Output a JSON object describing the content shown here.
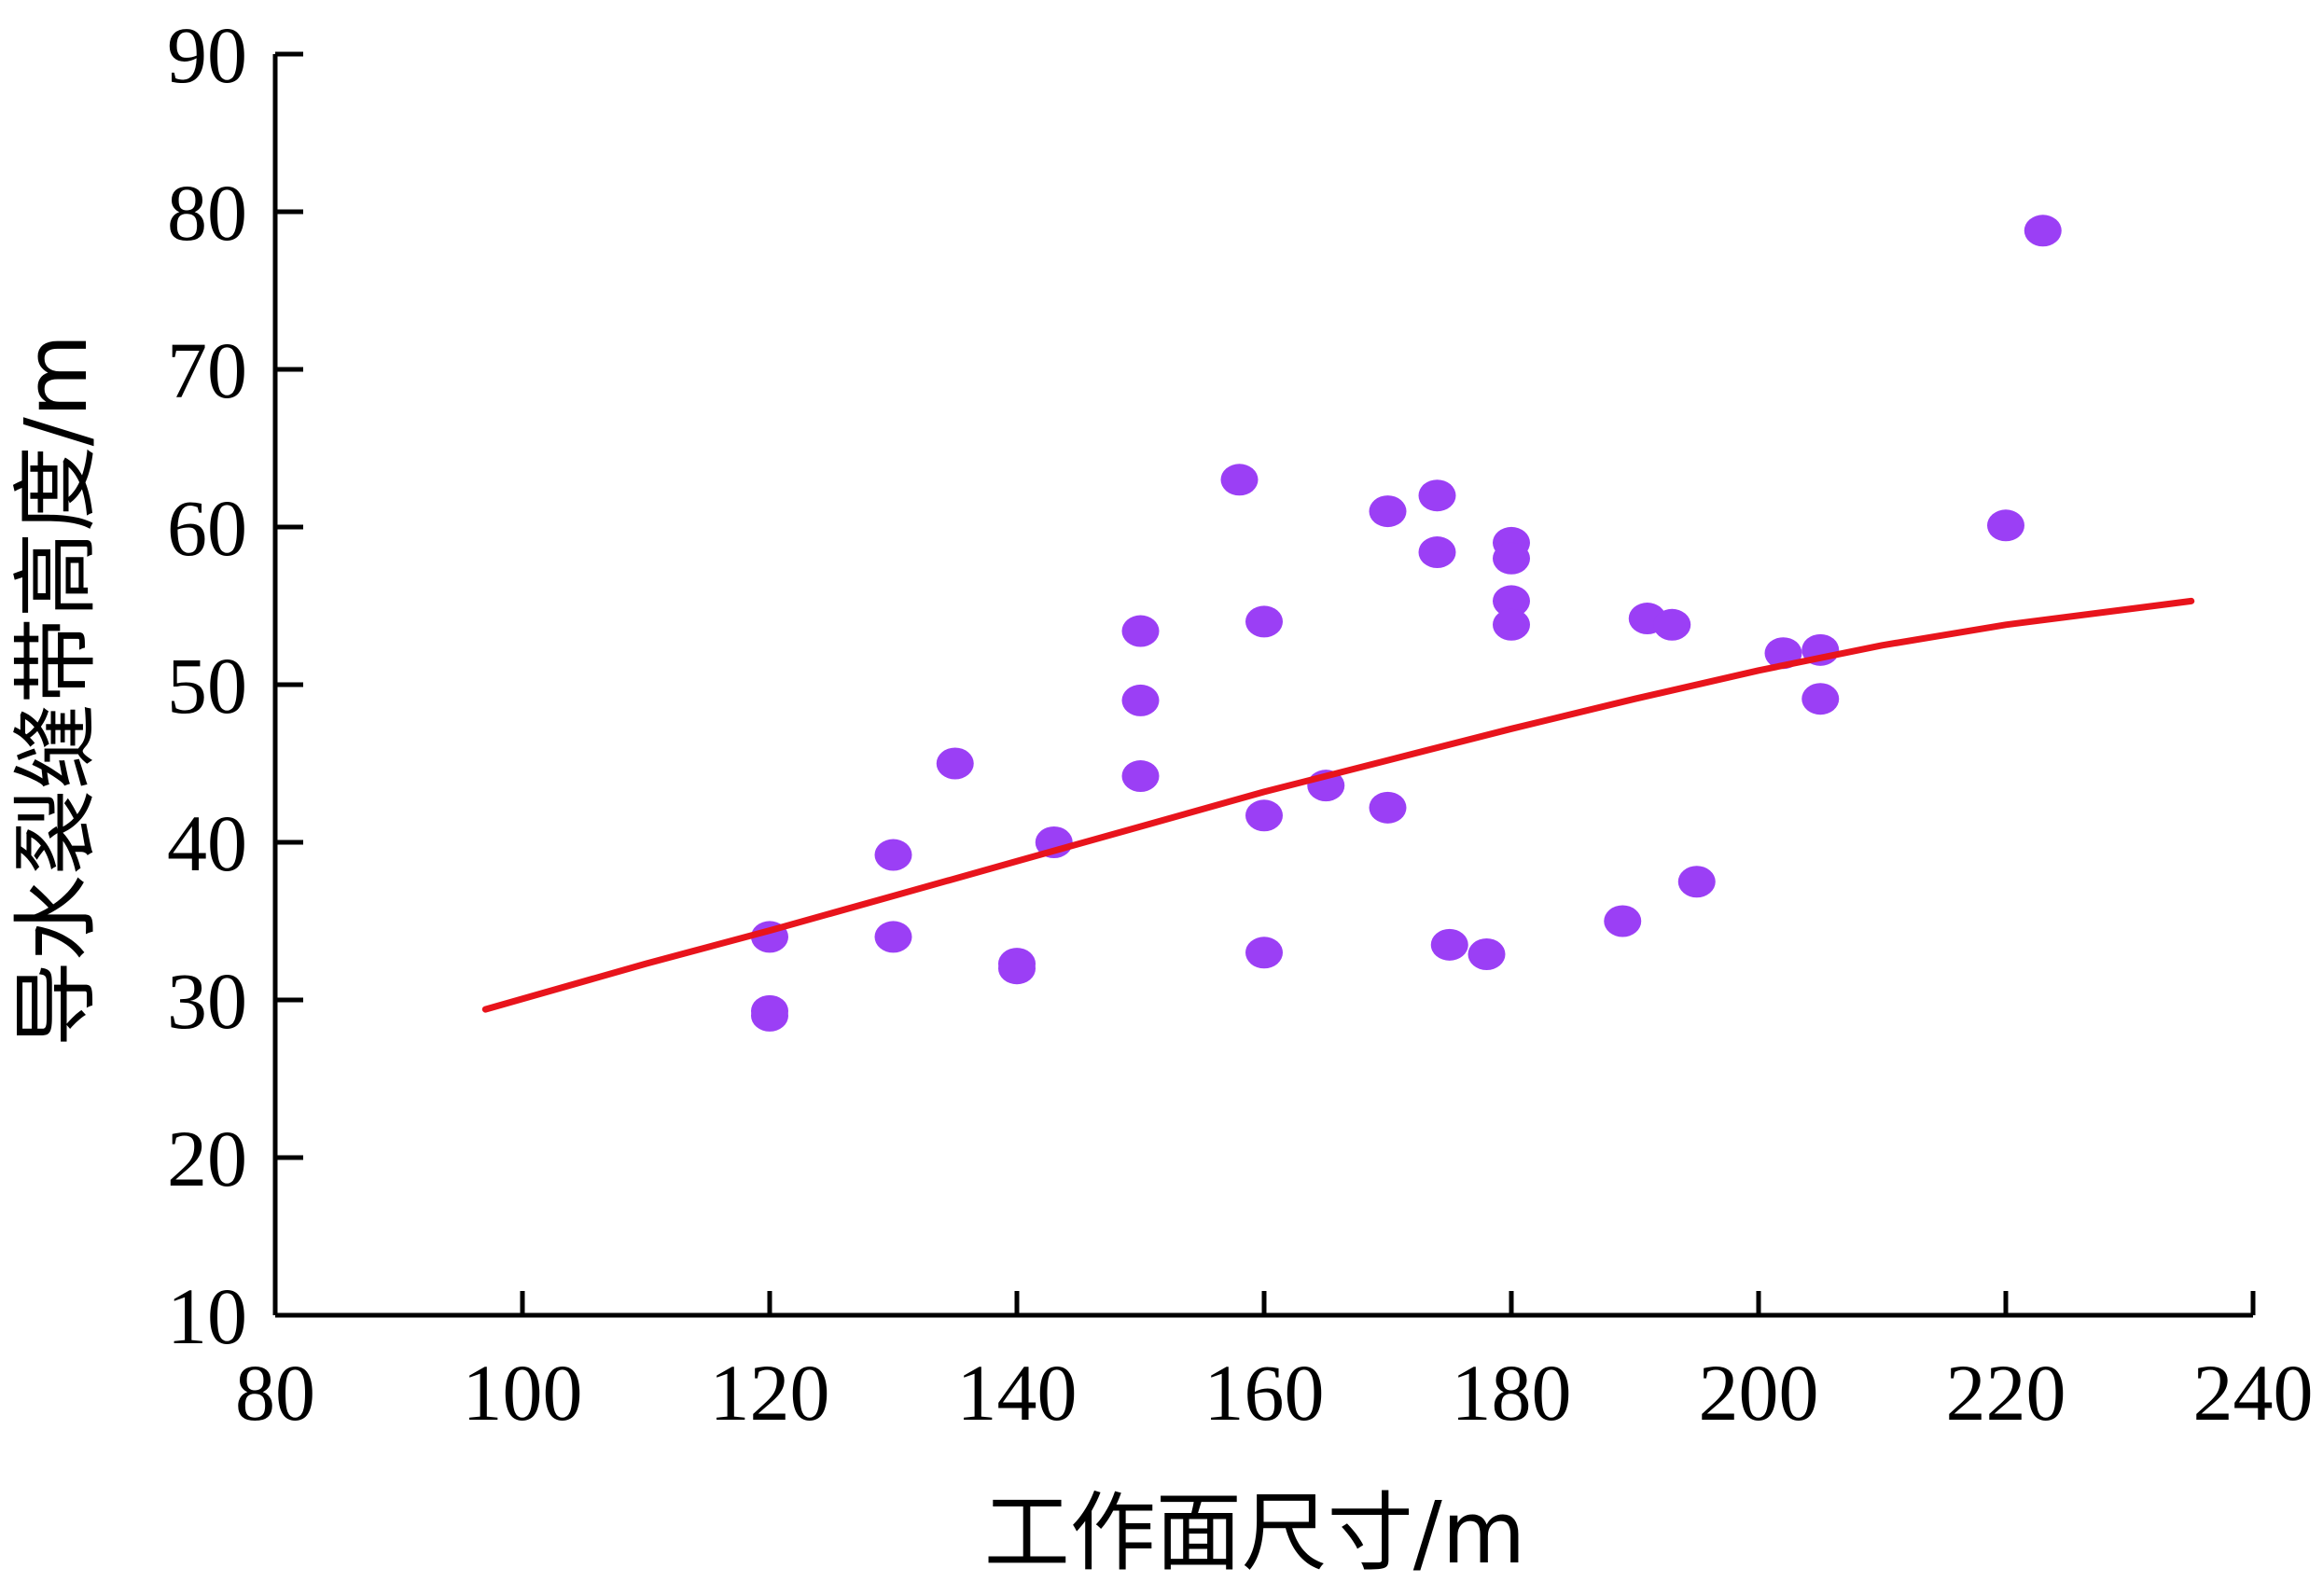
{
  "chart_data": {
    "type": "scatter",
    "xlabel": "工作面尺寸/m",
    "ylabel": "导水裂缝带高度/m",
    "xlim": [
      80,
      240
    ],
    "ylim": [
      10,
      90
    ],
    "x_ticks": [
      80,
      100,
      120,
      140,
      160,
      180,
      200,
      220,
      240
    ],
    "y_ticks": [
      10,
      20,
      30,
      40,
      50,
      60,
      70,
      80,
      90
    ],
    "grid": false,
    "colors": {
      "points": "#9b3ff5",
      "trend": "#e8141c",
      "axis": "#000000"
    },
    "points": [
      [
        120,
        34
      ],
      [
        120,
        29.3
      ],
      [
        120,
        29
      ],
      [
        130,
        39.2
      ],
      [
        130,
        34
      ],
      [
        135,
        45
      ],
      [
        140,
        32.3
      ],
      [
        140,
        32
      ],
      [
        143,
        40
      ],
      [
        150,
        53.4
      ],
      [
        150,
        49
      ],
      [
        150,
        44.2
      ],
      [
        158,
        63
      ],
      [
        160,
        54
      ],
      [
        160,
        41.7
      ],
      [
        160,
        33
      ],
      [
        165,
        43.6
      ],
      [
        170,
        61
      ],
      [
        170,
        42.2
      ],
      [
        174,
        62
      ],
      [
        174,
        58.4
      ],
      [
        175,
        33.5
      ],
      [
        178,
        32.9
      ],
      [
        180,
        59
      ],
      [
        180,
        58
      ],
      [
        180,
        55.3
      ],
      [
        180,
        53.8
      ],
      [
        189,
        35
      ],
      [
        191,
        54.2
      ],
      [
        193,
        53.8
      ],
      [
        195,
        37.5
      ],
      [
        202,
        52
      ],
      [
        205,
        52.2
      ],
      [
        205,
        49.1
      ],
      [
        220,
        60.1
      ],
      [
        223,
        78.8
      ]
    ],
    "trend": {
      "x": [
        97,
        110,
        120,
        130,
        140,
        150,
        160,
        170,
        180,
        190,
        200,
        210,
        220,
        235
      ],
      "y": [
        29.4,
        32.3,
        34.4,
        36.6,
        38.8,
        41.0,
        43.2,
        45.2,
        47.2,
        49.1,
        50.9,
        52.5,
        53.8,
        55.3
      ]
    }
  }
}
